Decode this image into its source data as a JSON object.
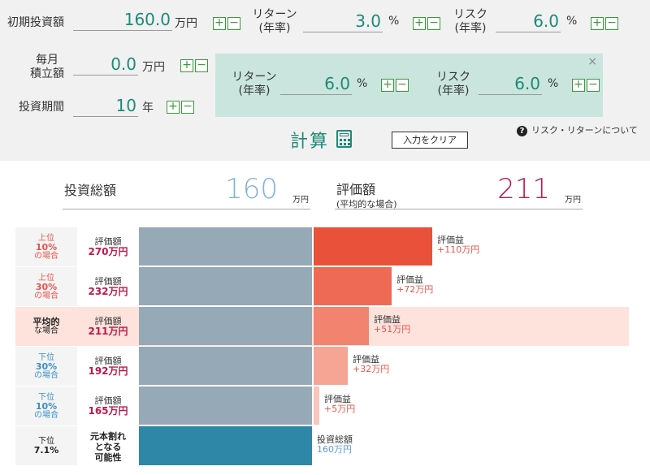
{
  "inputs": {
    "initial": {
      "label": "初期投資額",
      "value": "160.0",
      "unit": "万円"
    },
    "return1": {
      "label_line1": "リターン",
      "label_line2": "(年率)",
      "value": "3.0",
      "unit": "%"
    },
    "risk1": {
      "label_line1": "リスク",
      "label_line2": "(年率)",
      "value": "6.0",
      "unit": "%"
    },
    "monthly": {
      "label_line1": "毎月",
      "label_line2": "積立額",
      "value": "0.0",
      "unit": "万円"
    },
    "period": {
      "label": "投資期間",
      "value": "10",
      "unit": "年"
    },
    "plus": "+",
    "minus": "−"
  },
  "panel": {
    "return2": {
      "label_line1": "リターン",
      "label_line2": "(年率)",
      "value": "6.0",
      "unit": "%"
    },
    "risk2": {
      "label_line1": "リスク",
      "label_line2": "(年率)",
      "value": "6.0",
      "unit": "%"
    },
    "close": "×"
  },
  "actions": {
    "calculate": "計算",
    "clear": "入力をクリア",
    "help": "リスク・リターンについて",
    "help_q": "?"
  },
  "summary": {
    "total_label": "投資総額",
    "total_value": "160",
    "total_unit": "万円",
    "eval_label": "評価額",
    "eval_sub": "(平均的な場合)",
    "eval_value": "211",
    "eval_unit": "万円"
  },
  "colors": {
    "invest_bar": "#95a9b7",
    "principal_bar": "#2f87a8",
    "gain_top10": "#e9513b",
    "gain_top30": "#ee6a55",
    "gain_avg": "#f2846f",
    "gain_bottom30": "#f6a595",
    "gain_bottom10": "#f8c6bb"
  },
  "results": {
    "eval_caption": "評価額",
    "gain_caption": "評価益",
    "rows": [
      {
        "s1": "上位",
        "s2": "10%",
        "s3": "の場合",
        "eval": "270万円",
        "gain": "+110万円",
        "gain_value": 110
      },
      {
        "s1": "上位",
        "s2": "30%",
        "s3": "の場合",
        "eval": "232万円",
        "gain": "+72万円",
        "gain_value": 72
      },
      {
        "s1": "",
        "s2": "平均的",
        "s3": "な場合",
        "eval": "211万円",
        "gain": "+51万円",
        "gain_value": 51
      },
      {
        "s1": "下位",
        "s2": "30%",
        "s3": "の場合",
        "eval": "192万円",
        "gain": "+32万円",
        "gain_value": 32
      },
      {
        "s1": "下位",
        "s2": "10%",
        "s3": "の場合",
        "eval": "165万円",
        "gain": "+5万円",
        "gain_value": 5
      }
    ],
    "principal_row": {
      "s1": "下位",
      "s2": "7.1%",
      "label_line1": "元本割れ",
      "label_line2": "となる",
      "label_line3": "可能性",
      "caption": "投資総額",
      "amount": "160万円"
    }
  }
}
